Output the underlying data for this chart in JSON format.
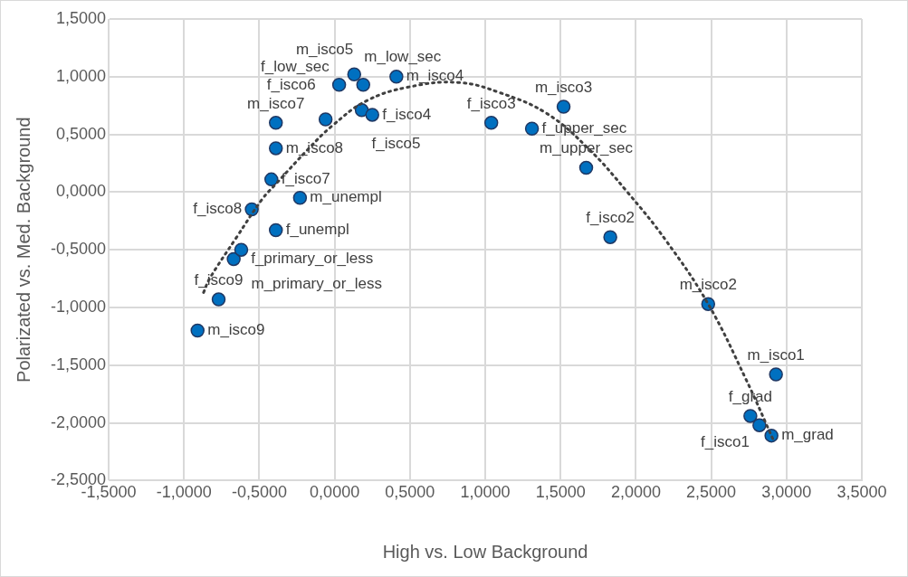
{
  "chart_data": {
    "type": "scatter",
    "xlabel": "High vs. Low Background",
    "ylabel": "Polarizated vs. Med. Background",
    "xlim": [
      -1.5,
      3.5
    ],
    "ylim": [
      -2.5,
      1.5
    ],
    "xticks": [
      {
        "value": -1.5,
        "label": "-1,5000"
      },
      {
        "value": -1,
        "label": "-1,0000"
      },
      {
        "value": -0.5,
        "label": "-0,5000"
      },
      {
        "value": 0,
        "label": "0,0000"
      },
      {
        "value": 0.5,
        "label": "0,5000"
      },
      {
        "value": 1,
        "label": "1,0000"
      },
      {
        "value": 1.5,
        "label": "1,5000"
      },
      {
        "value": 2,
        "label": "2,0000"
      },
      {
        "value": 2.5,
        "label": "2,5000"
      },
      {
        "value": 3,
        "label": "3,0000"
      },
      {
        "value": 3.5,
        "label": "3,5000"
      }
    ],
    "yticks": [
      {
        "value": -2.5,
        "label": "-2,5000"
      },
      {
        "value": -2,
        "label": "-2,0000"
      },
      {
        "value": -1.5,
        "label": "-1,5000"
      },
      {
        "value": -1,
        "label": "-1,0000"
      },
      {
        "value": -0.5,
        "label": "-0,5000"
      },
      {
        "value": 0,
        "label": "0,0000"
      },
      {
        "value": 0.5,
        "label": "0,5000"
      },
      {
        "value": 1,
        "label": "1,0000"
      },
      {
        "value": 1.5,
        "label": "1,5000"
      }
    ],
    "grid": true,
    "marker": "circle",
    "series": [
      {
        "type": "scatter",
        "color": "#0070c0",
        "x": [
          -0.91,
          -0.77,
          -0.67,
          -0.62,
          -0.39,
          -0.55,
          -0.23,
          -0.42,
          -0.39,
          -0.39,
          -0.06,
          0.18,
          0.25,
          0.03,
          0.13,
          0.19,
          0.41,
          1.04,
          1.31,
          1.52,
          1.67,
          1.83,
          2.48,
          2.93,
          2.76,
          2.82,
          2.9
        ],
        "values": [
          -1.2,
          -0.93,
          -0.58,
          -0.5,
          -0.33,
          -0.15,
          -0.05,
          0.11,
          0.38,
          0.6,
          0.63,
          0.71,
          0.67,
          0.93,
          1.02,
          0.93,
          1.0,
          0.6,
          0.55,
          0.74,
          0.21,
          -0.39,
          -0.97,
          -1.58,
          -1.94,
          -2.02,
          -2.11
        ]
      },
      {
        "type": "line",
        "color": "#404040",
        "line_style": "dotted",
        "marker": "none",
        "x": [
          -0.87,
          -0.83,
          -0.65,
          -0.48,
          -0.39,
          -0.17,
          -0.02,
          0.21,
          0.49,
          0.82,
          1.1,
          1.41,
          1.69,
          1.95,
          2.2,
          2.48,
          2.73,
          2.92
        ],
        "values": [
          -0.87,
          -0.75,
          -0.39,
          -0.06,
          0.07,
          0.38,
          0.57,
          0.79,
          0.91,
          0.95,
          0.86,
          0.68,
          0.37,
          -0.01,
          -0.42,
          -0.97,
          -1.62,
          -2.17
        ]
      }
    ],
    "annotations": [
      {
        "text": "m_isco9",
        "x": -0.91,
        "y": -1.2
      },
      {
        "text": "f_isco9",
        "x": -0.77,
        "y": -0.93
      },
      {
        "text": "f_primary_or_less",
        "x": -0.67,
        "y": -0.58
      },
      {
        "text": "m_primary_or_less",
        "x": -0.62,
        "y": -0.5
      },
      {
        "text": "f_unempl",
        "x": -0.39,
        "y": -0.33
      },
      {
        "text": "f_isco8",
        "x": -0.55,
        "y": -0.15
      },
      {
        "text": "m_unempl",
        "x": -0.23,
        "y": -0.05
      },
      {
        "text": "f_isco7",
        "x": -0.42,
        "y": 0.11
      },
      {
        "text": "m_isco8",
        "x": -0.39,
        "y": 0.38
      },
      {
        "text": "m_isco7",
        "x": -0.39,
        "y": 0.6
      },
      {
        "text": "f_isco6",
        "x": -0.06,
        "y": 0.63
      },
      {
        "text": "f_isco5",
        "x": 0.18,
        "y": 0.71
      },
      {
        "text": "f_isco4",
        "x": 0.25,
        "y": 0.67
      },
      {
        "text": "f_low_sec",
        "x": 0.03,
        "y": 0.93
      },
      {
        "text": "m_low_sec",
        "x": 0.13,
        "y": 1.02
      },
      {
        "text": "m_isco5",
        "x": 0.19,
        "y": 0.93
      },
      {
        "text": "m_isco4",
        "x": 0.41,
        "y": 1.0
      },
      {
        "text": "f_isco3",
        "x": 1.04,
        "y": 0.6
      },
      {
        "text": "f_upper_sec",
        "x": 1.31,
        "y": 0.55
      },
      {
        "text": "m_isco3",
        "x": 1.52,
        "y": 0.74
      },
      {
        "text": "m_upper_sec",
        "x": 1.67,
        "y": 0.21
      },
      {
        "text": "f_isco2",
        "x": 1.83,
        "y": -0.39
      },
      {
        "text": "m_isco2",
        "x": 2.48,
        "y": -0.97
      },
      {
        "text": "m_isco1",
        "x": 2.93,
        "y": -1.58
      },
      {
        "text": "f_grad",
        "x": 2.76,
        "y": -1.94
      },
      {
        "text": "f_isco1",
        "x": 2.82,
        "y": -2.02
      },
      {
        "text": "m_grad",
        "x": 2.9,
        "y": -2.11
      }
    ]
  }
}
